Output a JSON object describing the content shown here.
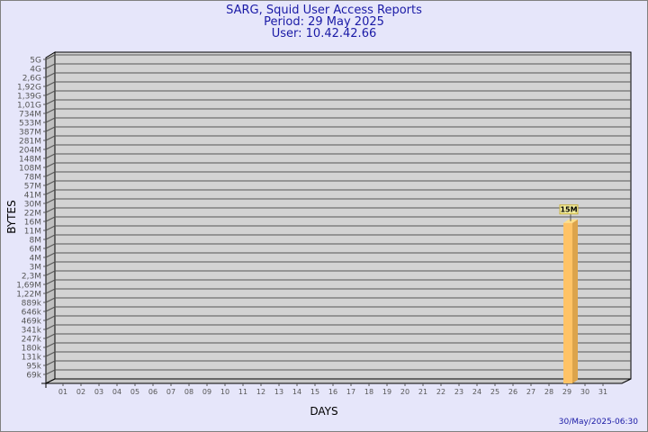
{
  "header": {
    "title": "SARG, Squid User Access Reports",
    "period": "Period: 29 May 2025",
    "user": "User: 10.42.42.66"
  },
  "footer": {
    "timestamp": "30/May/2025-06:30"
  },
  "colors": {
    "background": "#e6e6fa",
    "plot": "#d3d3d3",
    "bar": "#ffc366",
    "bar_side": "#dca44c",
    "title": "#1a1aa6",
    "label_box": "#f5f0a0"
  },
  "chart_data": {
    "type": "bar",
    "xlabel": "DAYS",
    "ylabel": "BYTES",
    "y_scale": "log",
    "y_ticks": [
      "5G",
      "4G",
      "2,6G",
      "1,92G",
      "1,39G",
      "1,01G",
      "734M",
      "533M",
      "387M",
      "281M",
      "204M",
      "148M",
      "108M",
      "78M",
      "57M",
      "41M",
      "30M",
      "22M",
      "16M",
      "11M",
      "8M",
      "6M",
      "4M",
      "3M",
      "2,3M",
      "1,69M",
      "1,22M",
      "889k",
      "646k",
      "469k",
      "341k",
      "247k",
      "180k",
      "131k",
      "95k",
      "69k"
    ],
    "categories": [
      "01",
      "02",
      "03",
      "04",
      "05",
      "06",
      "07",
      "08",
      "09",
      "10",
      "11",
      "12",
      "13",
      "14",
      "15",
      "16",
      "17",
      "18",
      "19",
      "20",
      "21",
      "22",
      "23",
      "24",
      "25",
      "26",
      "27",
      "28",
      "29",
      "30",
      "31"
    ],
    "bars": [
      {
        "category": "29",
        "value": "15M"
      }
    ],
    "grid": true
  }
}
